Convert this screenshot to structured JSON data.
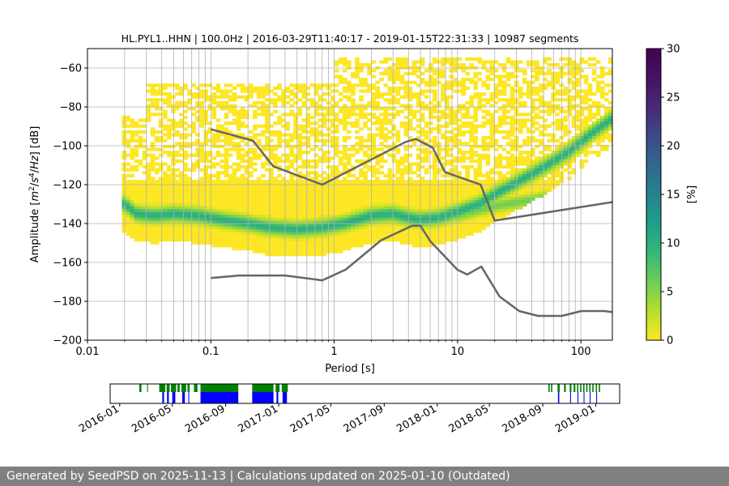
{
  "chart_data": [
    {
      "type": "heatmap",
      "title": "HL.PYL1..HHN | 100.0Hz | 2016-03-29T11:40:17 - 2019-01-15T22:31:33 | 10987 segments",
      "xlabel": "Period [s]",
      "ylabel": "Amplitude [m²/s⁴/Hz] [dB]",
      "xscale": "log",
      "xlim": [
        0.01,
        180
      ],
      "ylim": [
        -200,
        -50
      ],
      "xticks": [
        0.01,
        0.1,
        1,
        10,
        100
      ],
      "xtick_labels": [
        "0.01",
        "0.1",
        "1",
        "10",
        "100"
      ],
      "yticks": [
        -200,
        -180,
        -160,
        -140,
        -120,
        -100,
        -80,
        -60
      ],
      "ytick_labels": [
        "−200",
        "−180",
        "−160",
        "−140",
        "−120",
        "−100",
        "−80",
        "−60"
      ],
      "grid": true,
      "colorbar": {
        "label": "[%]",
        "range": [
          0,
          30
        ],
        "ticks": [
          0,
          5,
          10,
          15,
          20,
          25,
          30
        ],
        "tick_labels": [
          "0",
          "5",
          "10",
          "15",
          "20",
          "25",
          "30"
        ],
        "colors": [
          "#fde725",
          "#5ec962",
          "#21918c",
          "#3b528b",
          "#440154"
        ]
      },
      "mode_curve": {
        "x": [
          0.02,
          0.025,
          0.035,
          0.05,
          0.08,
          0.12,
          0.2,
          0.3,
          0.5,
          0.8,
          1.2,
          2,
          3,
          4,
          5,
          7,
          10,
          15,
          20,
          30,
          50,
          80,
          120,
          180
        ],
        "y": [
          -130,
          -135,
          -136,
          -135,
          -136,
          -138,
          -140,
          -142,
          -143,
          -142,
          -140,
          -136,
          -135,
          -137,
          -138,
          -137,
          -134,
          -130,
          -125,
          -119,
          -111,
          -103,
          -94,
          -86
        ]
      },
      "secondary_curve": {
        "x": [
          10,
          20,
          50,
          100,
          180
        ],
        "y": [
          -136,
          -131,
          -127,
          -126,
          -125
        ]
      },
      "high_noise_model": {
        "x": [
          0.1,
          0.22,
          0.32,
          0.8,
          3.8,
          4.6,
          6.3,
          7.9,
          15.4,
          20,
          354.8
        ],
        "y": [
          -91.5,
          -97.4,
          -110.5,
          -120,
          -98,
          -96.5,
          -101,
          -113.5,
          -120,
          -138.5,
          -126
        ]
      },
      "low_noise_model": {
        "x": [
          0.1,
          0.17,
          0.4,
          0.8,
          1.24,
          2.4,
          4.3,
          5,
          6,
          10,
          12,
          15.6,
          21.9,
          31.6,
          45,
          70,
          101,
          154,
          180
        ],
        "y": [
          -168,
          -166.7,
          -166.7,
          -169.2,
          -163.7,
          -148.6,
          -141.1,
          -141.1,
          -149,
          -163.8,
          -166.2,
          -162.1,
          -177.5,
          -185,
          -187.5,
          -187.5,
          -185,
          -185,
          -185.5
        ]
      }
    },
    {
      "type": "bar",
      "title": "",
      "xlabel": "",
      "ylabel": "",
      "xlim": [
        "2015-12-10",
        "2019-02-25"
      ],
      "xtick_labels": [
        "2016-01",
        "2016-05",
        "2016-09",
        "2017-01",
        "2017-05",
        "2017-09",
        "2018-01",
        "2018-05",
        "2018-09",
        "2019-01"
      ],
      "xtick_dates": [
        "2016-01-01",
        "2016-05-01",
        "2016-09-01",
        "2017-01-01",
        "2017-05-01",
        "2017-09-01",
        "2018-01-01",
        "2018-05-01",
        "2018-09-01",
        "2019-01-01"
      ],
      "colors": {
        "green": "#008000",
        "blue": "#0000ff"
      },
      "green_spans": [
        [
          "2016-02-15",
          "2016-02-20"
        ],
        [
          "2016-03-04",
          "2016-03-06"
        ],
        [
          "2016-04-01",
          "2016-04-15"
        ],
        [
          "2016-04-18",
          "2016-04-25"
        ],
        [
          "2016-04-28",
          "2016-05-10"
        ],
        [
          "2016-05-13",
          "2016-05-18"
        ],
        [
          "2016-05-22",
          "2016-06-02"
        ],
        [
          "2016-06-05",
          "2016-06-10"
        ],
        [
          "2016-06-20",
          "2016-06-28"
        ],
        [
          "2016-07-05",
          "2016-09-30"
        ],
        [
          "2016-11-01",
          "2016-12-20"
        ],
        [
          "2016-12-25",
          "2017-01-03"
        ],
        [
          "2017-01-08",
          "2017-01-22"
        ],
        [
          "2018-09-14",
          "2018-09-17"
        ],
        [
          "2018-09-20",
          "2018-09-23"
        ],
        [
          "2018-10-05",
          "2018-10-10"
        ],
        [
          "2018-10-20",
          "2018-10-24"
        ],
        [
          "2018-11-02",
          "2018-11-06"
        ],
        [
          "2018-11-11",
          "2018-11-15"
        ],
        [
          "2018-11-19",
          "2018-11-22"
        ],
        [
          "2018-11-26",
          "2018-11-29"
        ],
        [
          "2018-12-03",
          "2018-12-06"
        ],
        [
          "2018-12-10",
          "2018-12-13"
        ],
        [
          "2018-12-17",
          "2018-12-20"
        ],
        [
          "2018-12-24",
          "2018-12-27"
        ],
        [
          "2019-01-01",
          "2019-01-04"
        ],
        [
          "2019-01-08",
          "2019-01-11"
        ]
      ],
      "blue_spans": [
        [
          "2016-04-08",
          "2016-04-12"
        ],
        [
          "2016-04-19",
          "2016-04-23"
        ],
        [
          "2016-05-01",
          "2016-05-08"
        ],
        [
          "2016-05-24",
          "2016-05-30"
        ],
        [
          "2016-06-07",
          "2016-06-09"
        ],
        [
          "2016-07-05",
          "2016-09-30"
        ],
        [
          "2016-11-01",
          "2016-12-20"
        ],
        [
          "2016-12-27",
          "2016-12-31"
        ],
        [
          "2017-01-10",
          "2017-01-20"
        ],
        [
          "2018-10-06",
          "2018-10-09"
        ],
        [
          "2018-11-03",
          "2018-11-05"
        ],
        [
          "2018-11-20",
          "2018-11-22"
        ],
        [
          "2018-12-04",
          "2018-12-06"
        ],
        [
          "2018-12-18",
          "2018-12-20"
        ],
        [
          "2019-01-02",
          "2019-01-04"
        ]
      ]
    }
  ],
  "footer": {
    "text": "Generated by SeedPSD on 2025-11-13 | Calculations updated on 2025-01-10 (Outdated)"
  }
}
